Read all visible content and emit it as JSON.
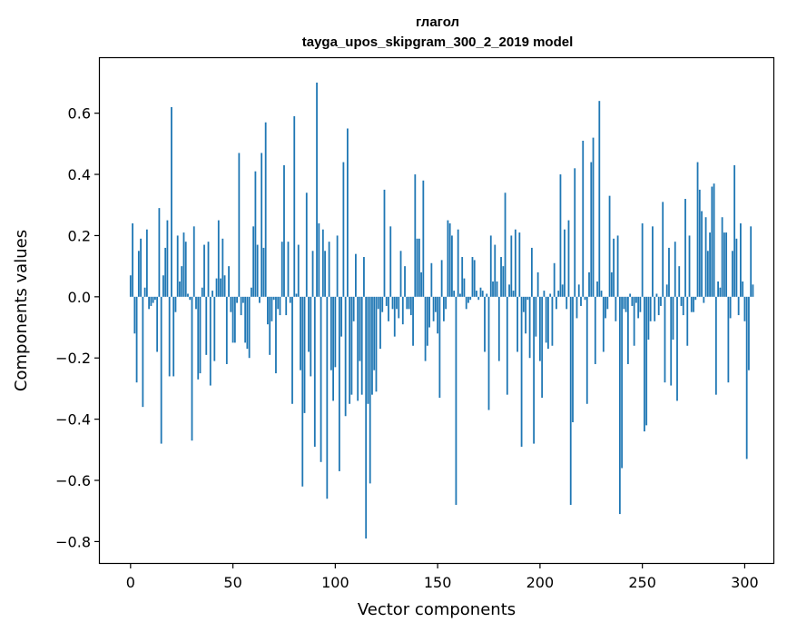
{
  "chart_data": {
    "type": "bar",
    "title": "глагол",
    "subtitle": "tayga_upos_skipgram_300_2_2019 model",
    "xlabel": "Vector components",
    "ylabel": "Components values",
    "xlim": [
      -15,
      314
    ],
    "ylim": [
      -0.87,
      0.78
    ],
    "x_ticks": [
      0,
      50,
      100,
      150,
      200,
      250,
      300
    ],
    "x_tick_labels": [
      "0",
      "50",
      "100",
      "150",
      "200",
      "250",
      "300"
    ],
    "y_ticks": [
      -0.8,
      -0.6,
      -0.4,
      -0.2,
      0.0,
      0.2,
      0.4,
      0.6
    ],
    "y_tick_labels": [
      "−0.8",
      "−0.6",
      "−0.4",
      "−0.2",
      "0.0",
      "0.2",
      "0.4",
      "0.6"
    ],
    "grid": false,
    "bar_color": "#1f77b4",
    "series": [
      {
        "name": "глагол",
        "x_start": 0,
        "values": [
          0.07,
          0.24,
          -0.12,
          -0.28,
          0.15,
          0.19,
          -0.36,
          0.03,
          0.22,
          -0.04,
          -0.03,
          -0.02,
          -0.01,
          -0.18,
          0.29,
          -0.48,
          0.07,
          0.16,
          0.25,
          -0.26,
          0.62,
          -0.26,
          -0.05,
          0.2,
          0.05,
          0.1,
          0.21,
          0.18,
          0.01,
          -0.01,
          -0.47,
          0.23,
          -0.04,
          -0.27,
          -0.25,
          0.03,
          0.17,
          -0.19,
          0.18,
          -0.29,
          0.02,
          -0.21,
          0.06,
          0.25,
          0.06,
          0.19,
          0.07,
          -0.22,
          0.1,
          -0.05,
          -0.15,
          -0.15,
          -0.02,
          0.47,
          -0.06,
          -0.02,
          -0.15,
          -0.17,
          -0.2,
          0.03,
          0.23,
          0.41,
          0.17,
          -0.02,
          0.47,
          0.16,
          0.57,
          -0.09,
          -0.19,
          -0.08,
          -0.01,
          -0.25,
          -0.04,
          -0.06,
          0.18,
          0.43,
          -0.06,
          0.18,
          -0.02,
          -0.35,
          0.59,
          0.01,
          0.17,
          -0.24,
          -0.62,
          -0.38,
          0.34,
          -0.18,
          -0.26,
          0.15,
          -0.49,
          0.7,
          0.24,
          -0.54,
          0.22,
          0.15,
          -0.66,
          0.18,
          -0.24,
          -0.34,
          -0.23,
          0.2,
          -0.57,
          -0.13,
          0.44,
          -0.39,
          0.55,
          -0.35,
          -0.32,
          -0.08,
          0.14,
          -0.34,
          -0.21,
          -0.32,
          0.13,
          -0.79,
          -0.35,
          -0.61,
          -0.32,
          -0.24,
          -0.31,
          -0.04,
          -0.17,
          -0.05,
          0.35,
          -0.03,
          -0.08,
          0.23,
          -0.04,
          -0.13,
          -0.04,
          -0.07,
          0.15,
          -0.09,
          0.1,
          -0.04,
          -0.04,
          -0.06,
          -0.16,
          0.4,
          0.19,
          0.19,
          0.08,
          0.38,
          -0.21,
          -0.16,
          -0.1,
          0.11,
          -0.08,
          -0.05,
          -0.12,
          -0.33,
          0.12,
          -0.08,
          -0.04,
          0.25,
          0.24,
          0.2,
          0.02,
          -0.68,
          0.22,
          0.01,
          0.13,
          0.06,
          -0.04,
          -0.02,
          -0.01,
          0.13,
          0.12,
          0.02,
          -0.01,
          0.03,
          0.02,
          -0.18,
          0.01,
          -0.37,
          0.2,
          0.05,
          0.17,
          0.05,
          -0.21,
          0.13,
          0.1,
          0.34,
          -0.32,
          0.04,
          0.2,
          0.02,
          0.22,
          -0.18,
          0.21,
          -0.49,
          -0.05,
          -0.12,
          -0.01,
          -0.2,
          0.16,
          -0.48,
          -0.13,
          0.08,
          -0.21,
          -0.33,
          0.02,
          -0.15,
          -0.17,
          0.01,
          -0.16,
          0.11,
          -0.04,
          0.02,
          0.4,
          0.04,
          0.22,
          -0.04,
          0.25,
          -0.68,
          -0.41,
          0.42,
          -0.07,
          0.04,
          -0.03,
          0.51,
          -0.01,
          -0.35,
          0.08,
          0.44,
          0.52,
          -0.22,
          0.05,
          0.64,
          0.02,
          -0.18,
          -0.07,
          -0.04,
          0.33,
          0.08,
          0.19,
          -0.08,
          0.2,
          -0.71,
          -0.56,
          -0.04,
          -0.05,
          -0.22,
          0.01,
          -0.03,
          -0.16,
          -0.02,
          -0.07,
          -0.05,
          0.24,
          -0.44,
          -0.42,
          -0.14,
          -0.08,
          0.23,
          -0.08,
          0.01,
          -0.06,
          -0.03,
          0.31,
          -0.28,
          0.04,
          0.16,
          -0.29,
          -0.14,
          0.18,
          -0.34,
          0.1,
          -0.03,
          -0.06,
          0.32,
          -0.16,
          0.2,
          -0.05,
          -0.05,
          -0.01,
          0.44,
          0.35,
          0.28,
          -0.02,
          0.26,
          0.15,
          0.21,
          0.36,
          0.37,
          -0.32,
          0.05,
          0.03,
          0.26,
          0.21,
          0.21,
          -0.28,
          -0.07,
          0.15,
          0.43,
          0.19,
          -0.06,
          0.24,
          0.05,
          -0.08,
          -0.53,
          -0.24,
          0.23,
          0.04
        ]
      }
    ]
  }
}
